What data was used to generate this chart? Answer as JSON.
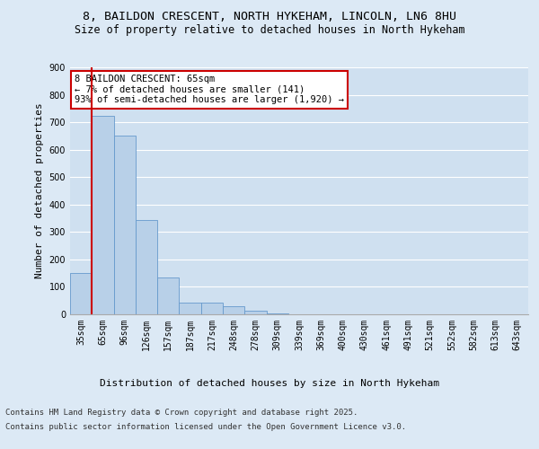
{
  "title_line1": "8, BAILDON CRESCENT, NORTH HYKEHAM, LINCOLN, LN6 8HU",
  "title_line2": "Size of property relative to detached houses in North Hykeham",
  "xlabel": "Distribution of detached houses by size in North Hykeham",
  "ylabel": "Number of detached properties",
  "categories": [
    "35sqm",
    "65sqm",
    "96sqm",
    "126sqm",
    "157sqm",
    "187sqm",
    "217sqm",
    "248sqm",
    "278sqm",
    "309sqm",
    "339sqm",
    "369sqm",
    "400sqm",
    "430sqm",
    "461sqm",
    "491sqm",
    "521sqm",
    "552sqm",
    "582sqm",
    "613sqm",
    "643sqm"
  ],
  "values": [
    152,
    724,
    650,
    344,
    133,
    44,
    41,
    30,
    12,
    3,
    0,
    0,
    0,
    0,
    0,
    0,
    0,
    0,
    0,
    0,
    0
  ],
  "bar_color": "#b8d0e8",
  "bar_edge_color": "#6699cc",
  "highlight_bar_index": 1,
  "annotation_text": "8 BAILDON CRESCENT: 65sqm\n← 7% of detached houses are smaller (141)\n93% of semi-detached houses are larger (1,920) →",
  "annotation_box_color": "#ffffff",
  "annotation_box_edge_color": "#cc0000",
  "ylim": [
    0,
    900
  ],
  "yticks": [
    0,
    100,
    200,
    300,
    400,
    500,
    600,
    700,
    800,
    900
  ],
  "background_color": "#dce9f5",
  "plot_background_color": "#cfe0f0",
  "footer_line1": "Contains HM Land Registry data © Crown copyright and database right 2025.",
  "footer_line2": "Contains public sector information licensed under the Open Government Licence v3.0.",
  "grid_color": "#ffffff",
  "title_fontsize": 9.5,
  "subtitle_fontsize": 8.5,
  "axis_label_fontsize": 8,
  "tick_fontsize": 7,
  "annotation_fontsize": 7.5,
  "footer_fontsize": 6.5
}
